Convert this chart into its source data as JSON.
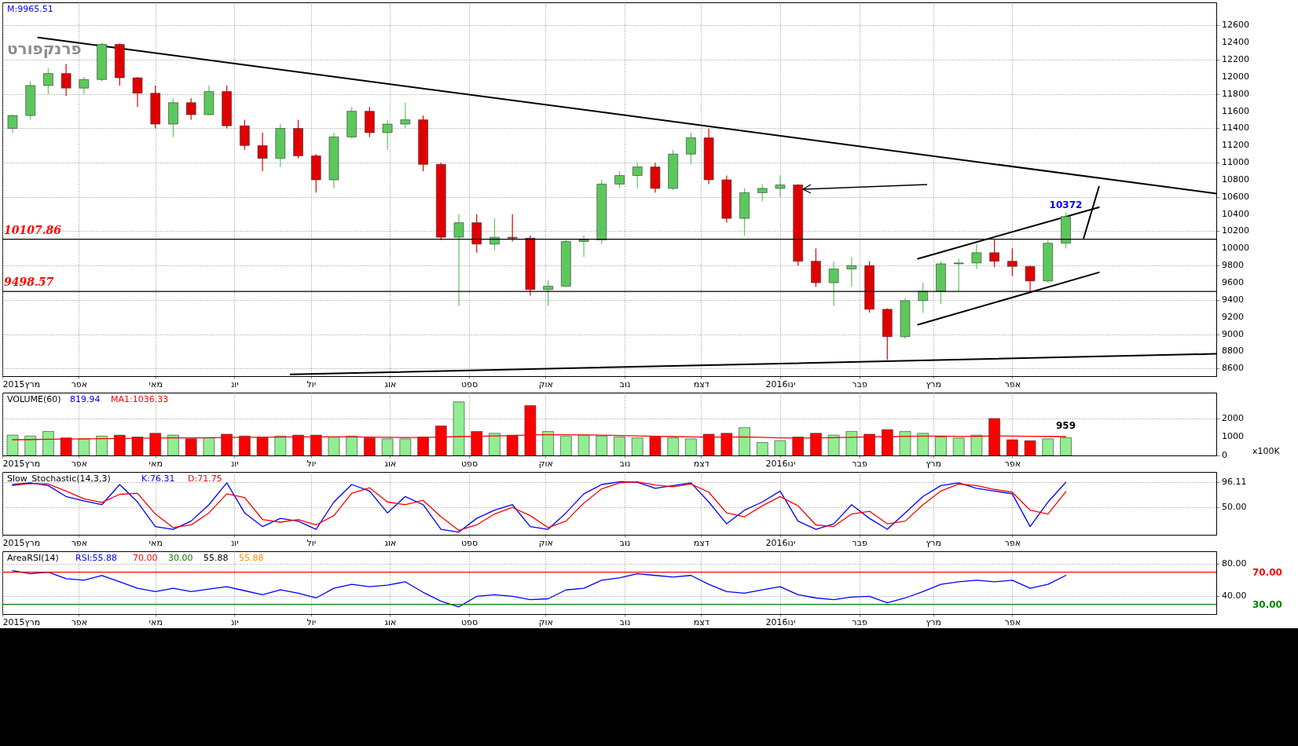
{
  "chart_data": [
    {
      "type": "candlestick",
      "title": "פרנקפורט",
      "x": [
        "2015-03-06",
        "2015-03-13",
        "2015-03-20",
        "2015-03-27",
        "2015-04-03",
        "2015-04-10",
        "2015-04-17",
        "2015-04-24",
        "2015-05-01",
        "2015-05-08",
        "2015-05-15",
        "2015-05-22",
        "2015-05-29",
        "2015-06-05",
        "2015-06-12",
        "2015-06-19",
        "2015-06-26",
        "2015-07-03",
        "2015-07-10",
        "2015-07-17",
        "2015-07-24",
        "2015-07-31",
        "2015-08-07",
        "2015-08-14",
        "2015-08-21",
        "2015-08-28",
        "2015-09-04",
        "2015-09-11",
        "2015-09-18",
        "2015-09-25",
        "2015-10-02",
        "2015-10-09",
        "2015-10-16",
        "2015-10-23",
        "2015-10-30",
        "2015-11-06",
        "2015-11-13",
        "2015-11-20",
        "2015-11-27",
        "2015-12-04",
        "2015-12-11",
        "2015-12-18",
        "2015-12-25",
        "2016-01-01",
        "2016-01-08",
        "2016-01-15",
        "2016-01-22",
        "2016-01-29",
        "2016-02-05",
        "2016-02-12",
        "2016-02-19",
        "2016-02-26",
        "2016-03-04",
        "2016-03-11",
        "2016-03-18",
        "2016-03-25",
        "2016-04-01",
        "2016-04-08",
        "2016-04-15",
        "2016-04-22"
      ],
      "ohlc": [
        [
          11400,
          11560,
          11350,
          11550
        ],
        [
          11550,
          11950,
          11500,
          11900
        ],
        [
          11900,
          12100,
          11800,
          12040
        ],
        [
          12040,
          12150,
          11780,
          11870
        ],
        [
          11870,
          12000,
          11800,
          11970
        ],
        [
          11970,
          12400,
          11950,
          12380
        ],
        [
          12380,
          12390,
          11900,
          11990
        ],
        [
          11990,
          12000,
          11650,
          11810
        ],
        [
          11810,
          11900,
          11400,
          11450
        ],
        [
          11450,
          11750,
          11300,
          11700
        ],
        [
          11700,
          11750,
          11500,
          11560
        ],
        [
          11560,
          11900,
          11550,
          11830
        ],
        [
          11830,
          11900,
          11400,
          11430
        ],
        [
          11430,
          11500,
          11150,
          11200
        ],
        [
          11200,
          11350,
          10900,
          11050
        ],
        [
          11050,
          11450,
          10950,
          11400
        ],
        [
          11400,
          11500,
          11050,
          11080
        ],
        [
          11080,
          11100,
          10650,
          10800
        ],
        [
          10800,
          11350,
          10700,
          11300
        ],
        [
          11300,
          11650,
          11280,
          11600
        ],
        [
          11600,
          11650,
          11300,
          11350
        ],
        [
          11350,
          11500,
          11150,
          11450
        ],
        [
          11450,
          11700,
          11400,
          11500
        ],
        [
          11500,
          11550,
          10900,
          10980
        ],
        [
          10980,
          11000,
          10100,
          10130
        ],
        [
          10130,
          10400,
          9330,
          10300
        ],
        [
          10300,
          10400,
          9950,
          10050
        ],
        [
          10050,
          10350,
          9980,
          10130
        ],
        [
          10130,
          10400,
          10080,
          10120
        ],
        [
          10120,
          10150,
          9450,
          9520
        ],
        [
          9520,
          9630,
          9330,
          9560
        ],
        [
          9560,
          10100,
          9550,
          10080
        ],
        [
          10080,
          10150,
          9900,
          10100
        ],
        [
          10100,
          10800,
          10050,
          10750
        ],
        [
          10750,
          10900,
          10700,
          10850
        ],
        [
          10850,
          11000,
          10700,
          10950
        ],
        [
          10950,
          11000,
          10650,
          10700
        ],
        [
          10700,
          11150,
          10680,
          11100
        ],
        [
          11100,
          11350,
          10980,
          11290
        ],
        [
          11290,
          11400,
          10750,
          10800
        ],
        [
          10800,
          10850,
          10300,
          10350
        ],
        [
          10350,
          10700,
          10150,
          10650
        ],
        [
          10650,
          10750,
          10550,
          10700
        ],
        [
          10700,
          10850,
          10600,
          10740
        ],
        [
          10740,
          10750,
          9800,
          9850
        ],
        [
          9850,
          10000,
          9550,
          9600
        ],
        [
          9600,
          9850,
          9330,
          9760
        ],
        [
          9760,
          9900,
          9550,
          9800
        ],
        [
          9800,
          9850,
          9250,
          9290
        ],
        [
          9290,
          9300,
          8700,
          8970
        ],
        [
          8970,
          9420,
          8950,
          9390
        ],
        [
          9390,
          9600,
          9250,
          9500
        ],
        [
          9500,
          9850,
          9350,
          9820
        ],
        [
          9820,
          9880,
          9500,
          9830
        ],
        [
          9830,
          10050,
          9760,
          9950
        ],
        [
          9950,
          10100,
          9780,
          9850
        ],
        [
          9850,
          10000,
          9680,
          9790
        ],
        [
          9790,
          9800,
          9500,
          9620
        ],
        [
          9620,
          10100,
          9600,
          10060
        ],
        [
          10060,
          10420,
          10000,
          10372
        ]
      ],
      "series": [
        {
          "type": "line",
          "color": "#000000",
          "x": [
            "2015-03-16",
            "2016-06-20"
          ],
          "values": [
            12460,
            10640
          ]
        },
        {
          "type": "line",
          "color": "#000000",
          "x": [
            "2015-06-23",
            "2016-06-20"
          ],
          "values": [
            8530,
            8770
          ]
        },
        {
          "type": "line",
          "color": "#000000",
          "x": [
            "2016-02-24",
            "2016-05-05"
          ],
          "values": [
            9880,
            10480
          ]
        },
        {
          "type": "line",
          "color": "#000000",
          "x": [
            "2016-02-24",
            "2016-05-05"
          ],
          "values": [
            9110,
            9720
          ]
        },
        {
          "type": "line",
          "color": "#000000",
          "x": [
            "2016-04-29",
            "2016-05-05"
          ],
          "values": [
            10120,
            10720
          ]
        }
      ],
      "xlim": [
        "2015-03-02",
        "2016-06-20"
      ],
      "xticks": [
        {
          "value": "2015-03-02",
          "label": "2015מרץ"
        },
        {
          "value": "2015-04-01",
          "label": "אפר"
        },
        {
          "value": "2015-05-01",
          "label": "מאי"
        },
        {
          "value": "2015-06-01",
          "label": "יונ"
        },
        {
          "value": "2015-07-01",
          "label": "יול"
        },
        {
          "value": "2015-08-01",
          "label": "אוג"
        },
        {
          "value": "2015-09-01",
          "label": "ספט"
        },
        {
          "value": "2015-10-01",
          "label": "אוק"
        },
        {
          "value": "2015-11-01",
          "label": "נוב"
        },
        {
          "value": "2015-12-01",
          "label": "דצמ"
        },
        {
          "value": "2016-01-01",
          "label": "2016ינו"
        },
        {
          "value": "2016-02-01",
          "label": "פבר"
        },
        {
          "value": "2016-03-01",
          "label": "מרץ"
        },
        {
          "value": "2016-04-01",
          "label": "אפר"
        }
      ],
      "ylim": [
        8510,
        12870
      ],
      "yticks": [
        8600,
        8800,
        9000,
        9200,
        9400,
        9600,
        9800,
        10000,
        10200,
        10400,
        10600,
        10800,
        11000,
        11200,
        11400,
        11600,
        11800,
        12000,
        12200,
        12400,
        12600
      ],
      "ref_lines": [
        {
          "axis": "y",
          "value": 10107.86,
          "label": "10107.86",
          "color": "#000000"
        },
        {
          "axis": "y",
          "value": 9498.57,
          "label": "9498.57",
          "color": "#000000"
        }
      ],
      "annotations": [
        "M:9965.51",
        {
          "text": "10372",
          "x": "2016-04-22",
          "y": 10372
        }
      ],
      "grid": true
    },
    {
      "type": "bar",
      "title": "VOLUME(60)",
      "ylabel": "x100K",
      "x": [
        "2015-03-06",
        "2015-03-13",
        "2015-03-20",
        "2015-03-27",
        "2015-04-03",
        "2015-04-10",
        "2015-04-17",
        "2015-04-24",
        "2015-05-01",
        "2015-05-08",
        "2015-05-15",
        "2015-05-22",
        "2015-05-29",
        "2015-06-05",
        "2015-06-12",
        "2015-06-19",
        "2015-06-26",
        "2015-07-03",
        "2015-07-10",
        "2015-07-17",
        "2015-07-24",
        "2015-07-31",
        "2015-08-07",
        "2015-08-14",
        "2015-08-21",
        "2015-08-28",
        "2015-09-04",
        "2015-09-11",
        "2015-09-18",
        "2015-09-25",
        "2015-10-02",
        "2015-10-09",
        "2015-10-16",
        "2015-10-23",
        "2015-10-30",
        "2015-11-06",
        "2015-11-13",
        "2015-11-20",
        "2015-11-27",
        "2015-12-04",
        "2015-12-11",
        "2015-12-18",
        "2015-12-25",
        "2016-01-01",
        "2016-01-08",
        "2016-01-15",
        "2016-01-22",
        "2016-01-29",
        "2016-02-05",
        "2016-02-12",
        "2016-02-19",
        "2016-02-26",
        "2016-03-04",
        "2016-03-11",
        "2016-03-18",
        "2016-03-25",
        "2016-04-01",
        "2016-04-08",
        "2016-04-15",
        "2016-04-22"
      ],
      "series": [
        {
          "type": "bar",
          "colors": [
            "#90ee90",
            "#90ee90",
            "#90ee90",
            "#ff0000",
            "#90ee90",
            "#90ee90",
            "#ff0000",
            "#ff0000",
            "#ff0000",
            "#90ee90",
            "#ff0000",
            "#90ee90",
            "#ff0000",
            "#ff0000",
            "#ff0000",
            "#90ee90",
            "#ff0000",
            "#ff0000",
            "#90ee90",
            "#90ee90",
            "#ff0000",
            "#90ee90",
            "#90ee90",
            "#ff0000",
            "#ff0000",
            "#90ee90",
            "#ff0000",
            "#90ee90",
            "#ff0000",
            "#ff0000",
            "#90ee90",
            "#90ee90",
            "#90ee90",
            "#90ee90",
            "#90ee90",
            "#90ee90",
            "#ff0000",
            "#90ee90",
            "#90ee90",
            "#ff0000",
            "#ff0000",
            "#90ee90",
            "#90ee90",
            "#90ee90",
            "#ff0000",
            "#ff0000",
            "#90ee90",
            "#90ee90",
            "#ff0000",
            "#ff0000",
            "#90ee90",
            "#90ee90",
            "#90ee90",
            "#90ee90",
            "#90ee90",
            "#ff0000",
            "#ff0000",
            "#ff0000",
            "#90ee90",
            "#90ee90"
          ],
          "values": [
            1100,
            1050,
            1300,
            950,
            900,
            1050,
            1100,
            1000,
            1200,
            1100,
            900,
            950,
            1150,
            1050,
            1000,
            1050,
            1100,
            1100,
            1000,
            1050,
            950,
            900,
            900,
            1000,
            1600,
            2900,
            1300,
            1200,
            1100,
            2700,
            1300,
            1050,
            1100,
            1050,
            1000,
            950,
            1000,
            950,
            900,
            1150,
            1200,
            1500,
            700,
            800,
            1000,
            1200,
            1100,
            1300,
            1150,
            1400,
            1300,
            1200,
            1000,
            950,
            1100,
            2000,
            850,
            800,
            900,
            959
          ]
        },
        {
          "type": "line",
          "color": "#ff0000",
          "values": [
            850,
            860,
            880,
            890,
            900,
            910,
            920,
            930,
            940,
            950,
            950,
            960,
            970,
            980,
            980,
            990,
            1000,
            1000,
            1000,
            1000,
            990,
            980,
            970,
            970,
            990,
            1020,
            1040,
            1060,
            1080,
            1110,
            1120,
            1120,
            1110,
            1100,
            1080,
            1060,
            1040,
            1020,
            1000,
            990,
            990,
            1000,
            980,
            950,
            940,
            950,
            960,
            980,
            1000,
            1020,
            1040,
            1050,
            1050,
            1040,
            1040,
            1060,
            1050,
            1040,
            1030,
            1020
          ]
        }
      ],
      "xlim": [
        "2015-03-02",
        "2016-06-20"
      ],
      "xticks": [
        {
          "value": "2015-03-02",
          "label": "2015מרץ"
        },
        {
          "value": "2015-04-01",
          "label": "אפר"
        },
        {
          "value": "2015-05-01",
          "label": "מאי"
        },
        {
          "value": "2015-06-01",
          "label": "יונ"
        },
        {
          "value": "2015-07-01",
          "label": "יול"
        },
        {
          "value": "2015-08-01",
          "label": "אוג"
        },
        {
          "value": "2015-09-01",
          "label": "ספט"
        },
        {
          "value": "2015-10-01",
          "label": "אוק"
        },
        {
          "value": "2015-11-01",
          "label": "נוב"
        },
        {
          "value": "2015-12-01",
          "label": "דצמ"
        },
        {
          "value": "2016-01-01",
          "label": "2016ינו"
        },
        {
          "value": "2016-02-01",
          "label": "פבר"
        },
        {
          "value": "2016-03-01",
          "label": "מרץ"
        },
        {
          "value": "2016-04-01",
          "label": "אפר"
        }
      ],
      "ylim": [
        0,
        3400
      ],
      "yticks": [
        0,
        1000,
        2000
      ],
      "annotations": [
        "819.94",
        "MA1:1036.33",
        {
          "text": "959",
          "x": "2016-04-22",
          "y": 959
        }
      ],
      "grid": true
    },
    {
      "type": "line",
      "title": "Slow_Stochastic(14,3,3)",
      "x": [
        "2015-03-06",
        "2015-03-13",
        "2015-03-20",
        "2015-03-27",
        "2015-04-03",
        "2015-04-10",
        "2015-04-17",
        "2015-04-24",
        "2015-05-01",
        "2015-05-08",
        "2015-05-15",
        "2015-05-22",
        "2015-05-29",
        "2015-06-05",
        "2015-06-12",
        "2015-06-19",
        "2015-06-26",
        "2015-07-03",
        "2015-07-10",
        "2015-07-17",
        "2015-07-24",
        "2015-07-31",
        "2015-08-07",
        "2015-08-14",
        "2015-08-21",
        "2015-08-28",
        "2015-09-04",
        "2015-09-11",
        "2015-09-18",
        "2015-09-25",
        "2015-10-02",
        "2015-10-09",
        "2015-10-16",
        "2015-10-23",
        "2015-10-30",
        "2015-11-06",
        "2015-11-13",
        "2015-11-20",
        "2015-11-27",
        "2015-12-04",
        "2015-12-11",
        "2015-12-18",
        "2015-12-25",
        "2016-01-01",
        "2016-01-08",
        "2016-01-15",
        "2016-01-22",
        "2016-01-29",
        "2016-02-05",
        "2016-02-12",
        "2016-02-19",
        "2016-02-26",
        "2016-03-04",
        "2016-03-11",
        "2016-03-18",
        "2016-03-25",
        "2016-04-01",
        "2016-04-08",
        "2016-04-15",
        "2016-04-22"
      ],
      "series": [
        {
          "color": "#0000ff",
          "values": [
            92,
            95,
            90,
            70,
            62,
            55,
            92,
            60,
            15,
            10,
            25,
            55,
            95,
            40,
            15,
            30,
            25,
            10,
            60,
            92,
            80,
            40,
            70,
            55,
            10,
            5,
            30,
            45,
            55,
            15,
            10,
            40,
            75,
            92,
            97,
            96,
            85,
            90,
            95,
            60,
            20,
            45,
            60,
            80,
            25,
            10,
            20,
            55,
            30,
            10,
            40,
            70,
            90,
            95,
            85,
            80,
            75,
            15,
            60,
            96
          ]
        },
        {
          "color": "#ff0000",
          "values": [
            90,
            94,
            93,
            80,
            66,
            59,
            74,
            76,
            38,
            13,
            18,
            40,
            75,
            68,
            28,
            23,
            28,
            18,
            35,
            76,
            86,
            60,
            55,
            63,
            33,
            8,
            18,
            38,
            50,
            35,
            13,
            25,
            58,
            84,
            95,
            97,
            91,
            88,
            93,
            78,
            40,
            33,
            53,
            70,
            53,
            18,
            15,
            38,
            43,
            20,
            25,
            55,
            80,
            93,
            90,
            83,
            78,
            45,
            38,
            79
          ]
        }
      ],
      "xlim": [
        "2015-03-02",
        "2016-06-20"
      ],
      "xticks": [
        {
          "value": "2015-03-02",
          "label": "2015מרץ"
        },
        {
          "value": "2015-04-01",
          "label": "אפר"
        },
        {
          "value": "2015-05-01",
          "label": "מאי"
        },
        {
          "value": "2015-06-01",
          "label": "יונ"
        },
        {
          "value": "2015-07-01",
          "label": "יול"
        },
        {
          "value": "2015-08-01",
          "label": "אוג"
        },
        {
          "value": "2015-09-01",
          "label": "ספט"
        },
        {
          "value": "2015-10-01",
          "label": "אוק"
        },
        {
          "value": "2015-11-01",
          "label": "נוב"
        },
        {
          "value": "2015-12-01",
          "label": "דצמ"
        },
        {
          "value": "2016-01-01",
          "label": "2016ינו"
        },
        {
          "value": "2016-02-01",
          "label": "פבר"
        },
        {
          "value": "2016-03-01",
          "label": "מרץ"
        },
        {
          "value": "2016-04-01",
          "label": "אפר"
        }
      ],
      "ylim": [
        0,
        115
      ],
      "yticks": [
        {
          "value": 50,
          "label": "50.00"
        },
        {
          "value": 96.11,
          "label": "96.11"
        }
      ],
      "annotations": [
        "K:76.31",
        "D:71.75"
      ],
      "grid": true
    },
    {
      "type": "line",
      "title": "AreaRSI(14)",
      "x": [
        "2015-03-06",
        "2015-03-13",
        "2015-03-20",
        "2015-03-27",
        "2015-04-03",
        "2015-04-10",
        "2015-04-17",
        "2015-04-24",
        "2015-05-01",
        "2015-05-08",
        "2015-05-15",
        "2015-05-22",
        "2015-05-29",
        "2015-06-05",
        "2015-06-12",
        "2015-06-19",
        "2015-06-26",
        "2015-07-03",
        "2015-07-10",
        "2015-07-17",
        "2015-07-24",
        "2015-07-31",
        "2015-08-07",
        "2015-08-14",
        "2015-08-21",
        "2015-08-28",
        "2015-09-04",
        "2015-09-11",
        "2015-09-18",
        "2015-09-25",
        "2015-10-02",
        "2015-10-09",
        "2015-10-16",
        "2015-10-23",
        "2015-10-30",
        "2015-11-06",
        "2015-11-13",
        "2015-11-20",
        "2015-11-27",
        "2015-12-04",
        "2015-12-11",
        "2015-12-18",
        "2015-12-25",
        "2016-01-01",
        "2016-01-08",
        "2016-01-15",
        "2016-01-22",
        "2016-01-29",
        "2016-02-05",
        "2016-02-12",
        "2016-02-19",
        "2016-02-26",
        "2016-03-04",
        "2016-03-11",
        "2016-03-18",
        "2016-03-25",
        "2016-04-01",
        "2016-04-08",
        "2016-04-15",
        "2016-04-22"
      ],
      "series": [
        {
          "color": "#0000ff",
          "values": [
            72,
            68,
            70,
            62,
            60,
            66,
            58,
            50,
            46,
            50,
            46,
            49,
            52,
            47,
            42,
            48,
            44,
            38,
            50,
            55,
            52,
            54,
            58,
            45,
            34,
            27,
            40,
            42,
            40,
            36,
            37,
            48,
            50,
            60,
            63,
            68,
            66,
            64,
            66,
            55,
            46,
            44,
            48,
            52,
            42,
            38,
            36,
            39,
            40,
            32,
            38,
            46,
            55,
            58,
            60,
            58,
            60,
            50,
            55,
            66
          ]
        }
      ],
      "xlim": [
        "2015-03-02",
        "2016-06-20"
      ],
      "xticks": [
        {
          "value": "2015-03-02",
          "label": "2015מרץ"
        },
        {
          "value": "2015-04-01",
          "label": "אפר"
        },
        {
          "value": "2015-05-01",
          "label": "מאי"
        },
        {
          "value": "2015-06-01",
          "label": "יונ"
        },
        {
          "value": "2015-07-01",
          "label": "יול"
        },
        {
          "value": "2015-08-01",
          "label": "אוג"
        },
        {
          "value": "2015-09-01",
          "label": "ספט"
        },
        {
          "value": "2015-10-01",
          "label": "אוק"
        },
        {
          "value": "2015-11-01",
          "label": "נוב"
        },
        {
          "value": "2015-12-01",
          "label": "דצמ"
        },
        {
          "value": "2016-01-01",
          "label": "2016ינו"
        },
        {
          "value": "2016-02-01",
          "label": "פבר"
        },
        {
          "value": "2016-03-01",
          "label": "מרץ"
        },
        {
          "value": "2016-04-01",
          "label": "אפר"
        }
      ],
      "ylim": [
        18,
        96
      ],
      "yticks": [
        {
          "value": 40,
          "label": "40.00"
        },
        {
          "value": 80,
          "label": "80.00"
        }
      ],
      "ref_lines": [
        {
          "axis": "y",
          "value": 70,
          "label": "70.00",
          "color": "#ff0000"
        },
        {
          "axis": "y",
          "value": 30,
          "label": "30.00",
          "color": "#008000"
        }
      ],
      "annotations": [
        "RSI:55.88",
        "70.00",
        "30.00",
        "55.88",
        "55.88"
      ],
      "grid": true
    }
  ]
}
